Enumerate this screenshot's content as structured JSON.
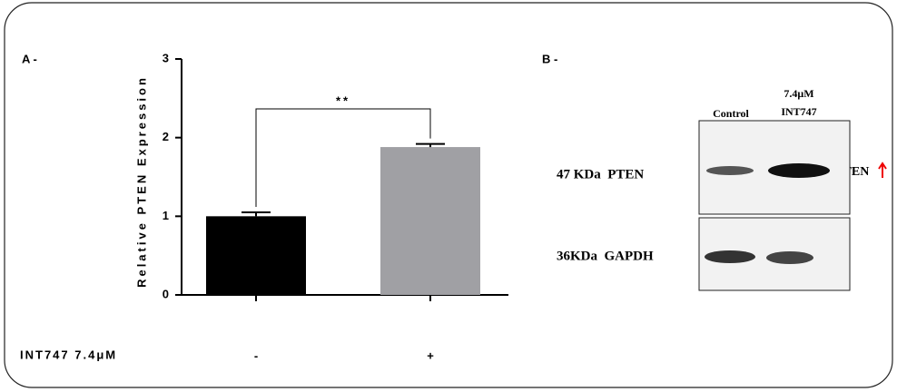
{
  "chart_data": {
    "type": "bar",
    "panel_label": "A -",
    "ylabel": "Relative PTEN Expression",
    "xlabel": "INT747 7.4μM",
    "categories": [
      "-",
      "+"
    ],
    "values": [
      1.0,
      1.88
    ],
    "errors": [
      0.05,
      0.04
    ],
    "colors": [
      "#000000",
      "#a0a0a4"
    ],
    "ylim": [
      0,
      3
    ],
    "yticks": [
      0,
      1,
      2,
      3
    ],
    "annotation": "**"
  },
  "blot": {
    "panel_label": "B -",
    "columns": [
      "Control",
      "7.4μM INT747"
    ],
    "rows": [
      "47 KDa  PTEN",
      "36KDa  GAPDH"
    ],
    "side_label": "PTEN"
  }
}
